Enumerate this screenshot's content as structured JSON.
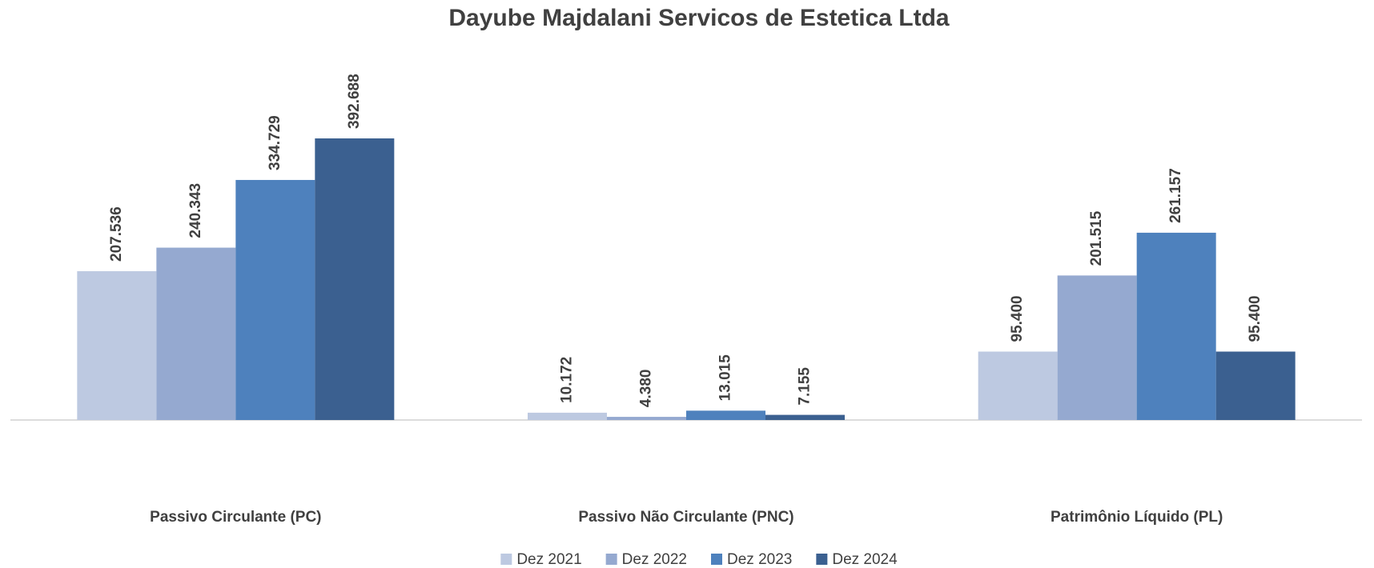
{
  "chart_data": {
    "type": "bar",
    "title": "Dayube Majdalani Servicos de Estetica Ltda",
    "categories": [
      "Passivo Circulante (PC)",
      "Passivo Não Circulante (PNC)",
      "Patrimônio Líquido (PL)"
    ],
    "series": [
      {
        "name": "Dez 2021",
        "color": "#bdc9e1",
        "values": [
          207536,
          10172,
          95400
        ],
        "value_labels": [
          "207.536",
          "10.172",
          "95.400"
        ]
      },
      {
        "name": "Dez 2022",
        "color": "#95a9d0",
        "values": [
          240343,
          4380,
          201515
        ],
        "value_labels": [
          "240.343",
          "4.380",
          "201.515"
        ]
      },
      {
        "name": "Dez 2023",
        "color": "#4e81bd",
        "values": [
          334729,
          13015,
          261157
        ],
        "value_labels": [
          "334.729",
          "13.015",
          "261.157"
        ]
      },
      {
        "name": "Dez 2024",
        "color": "#3b6090",
        "values": [
          392688,
          7155,
          95400
        ],
        "value_labels": [
          "392.688",
          "7.155",
          "95.400"
        ]
      }
    ],
    "legend": "bottom"
  }
}
